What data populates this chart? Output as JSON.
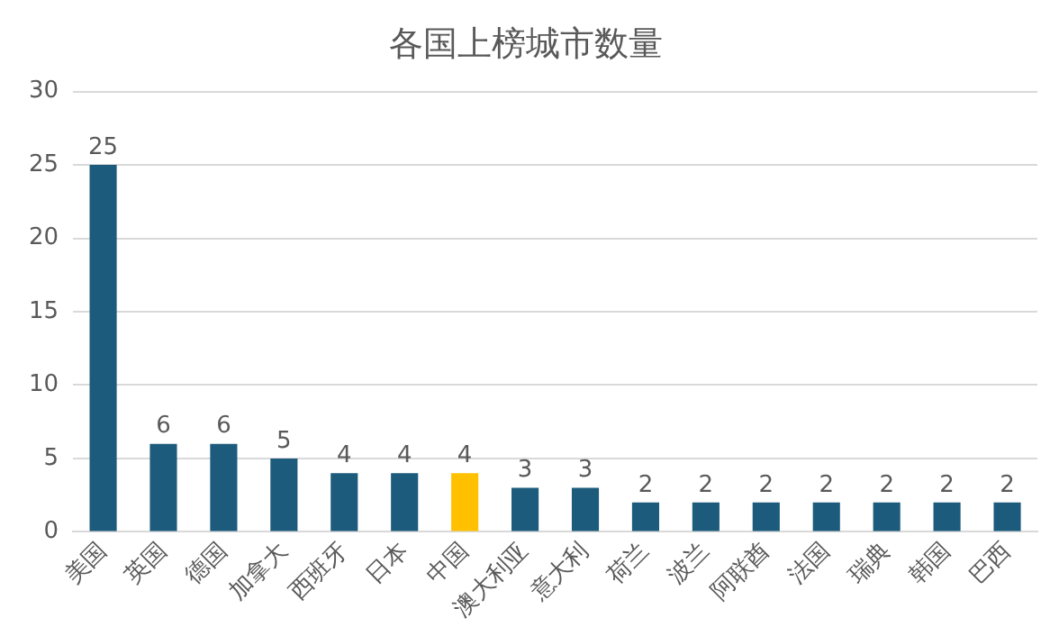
{
  "chart_data": {
    "type": "bar",
    "title": "各国上榜城市数量",
    "categories": [
      "美国",
      "英国",
      "德国",
      "加拿大",
      "西班牙",
      "日本",
      "中国",
      "澳大利亚",
      "意大利",
      "荷兰",
      "波兰",
      "阿联酋",
      "法国",
      "瑞典",
      "韩国",
      "巴西"
    ],
    "values": [
      25,
      6,
      6,
      5,
      4,
      4,
      4,
      3,
      3,
      2,
      2,
      2,
      2,
      2,
      2,
      2
    ],
    "colors": [
      "#1c5b7c",
      "#1c5b7c",
      "#1c5b7c",
      "#1c5b7c",
      "#1c5b7c",
      "#1c5b7c",
      "#ffc000",
      "#1c5b7c",
      "#1c5b7c",
      "#1c5b7c",
      "#1c5b7c",
      "#1c5b7c",
      "#1c5b7c",
      "#1c5b7c",
      "#1c5b7c",
      "#1c5b7c"
    ],
    "ylim": [
      0,
      30
    ],
    "yticks": [
      0,
      5,
      10,
      15,
      20,
      25,
      30
    ],
    "grid": "y",
    "data_labels": true,
    "legend": false
  }
}
